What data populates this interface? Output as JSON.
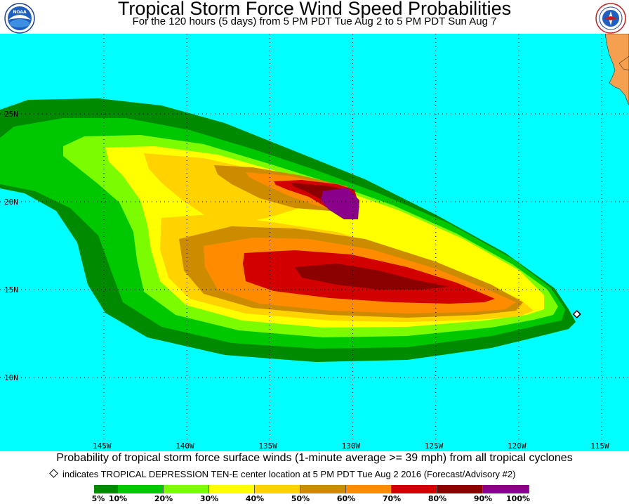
{
  "header": {
    "title": "Tropical Storm Force Wind Speed Probabilities",
    "subtitle": "For the 120 hours (5 days) from 5 PM PDT Tue Aug 2 to 5 PM PDT Sun Aug 7"
  },
  "logos": {
    "left": "noaa-logo",
    "right": "national-weather-service-logo"
  },
  "map": {
    "longitude_labels": [
      "145W",
      "140W",
      "135W",
      "130W",
      "125W",
      "120W",
      "115W"
    ],
    "latitude_labels": [
      "25N",
      "20N",
      "15N",
      "10N"
    ],
    "ocean_color": "#00ffff",
    "land_color": "#f5a050",
    "storm_center": {
      "lon": -116.5,
      "lat": 13.6
    }
  },
  "captions": {
    "probability": "Probability of tropical storm force surface winds (1-minute average >= 39 mph) from all tropical cyclones",
    "center": "indicates TROPICAL DEPRESSION TEN-E center location at 5 PM PDT Tue Aug 2 2016 (Forecast/Advisory #2)"
  },
  "legend": {
    "bins": [
      {
        "color": "#008a00"
      },
      {
        "color": "#00c800"
      },
      {
        "color": "#7cfc00"
      },
      {
        "color": "#ffff00"
      },
      {
        "color": "#ffd200"
      },
      {
        "color": "#cd8c00"
      },
      {
        "color": "#ff8c00"
      },
      {
        "color": "#d20000"
      },
      {
        "color": "#8b0000"
      },
      {
        "color": "#8b008b"
      }
    ],
    "labels": [
      "5%",
      "10%",
      "20%",
      "30%",
      "40%",
      "50%",
      "60%",
      "70%",
      "80%",
      "90%",
      "100%"
    ]
  }
}
